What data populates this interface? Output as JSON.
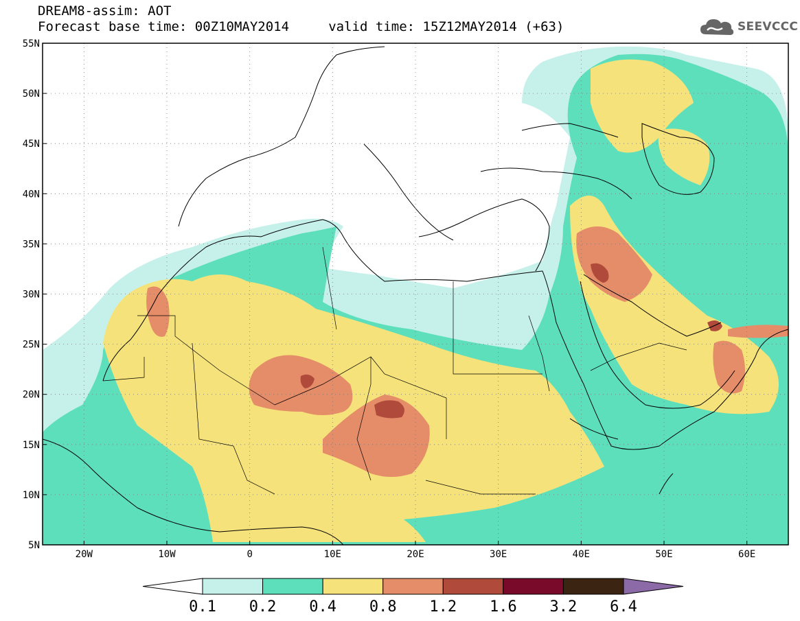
{
  "header": {
    "title_line1": "DREAM8-assim: AOT",
    "title_line2": "Forecast base time: 00Z10MAY2014     valid time: 15Z12MAY2014 (+63)",
    "logo_text": "SEEVCCC",
    "logo_icon": "cloud-logo-icon"
  },
  "map": {
    "lon_range": [
      -25,
      65
    ],
    "lat_range": [
      5,
      55
    ],
    "lon_ticks": [
      {
        "value": -20,
        "label": "20W"
      },
      {
        "value": -10,
        "label": "10W"
      },
      {
        "value": 0,
        "label": "0"
      },
      {
        "value": 10,
        "label": "10E"
      },
      {
        "value": 20,
        "label": "20E"
      },
      {
        "value": 30,
        "label": "30E"
      },
      {
        "value": 40,
        "label": "40E"
      },
      {
        "value": 50,
        "label": "50E"
      },
      {
        "value": 60,
        "label": "60E"
      }
    ],
    "lat_ticks": [
      {
        "value": 5,
        "label": "5N"
      },
      {
        "value": 10,
        "label": "10N"
      },
      {
        "value": 15,
        "label": "15N"
      },
      {
        "value": 20,
        "label": "20N"
      },
      {
        "value": 25,
        "label": "25N"
      },
      {
        "value": 30,
        "label": "30N"
      },
      {
        "value": 35,
        "label": "35N"
      },
      {
        "value": 40,
        "label": "40N"
      },
      {
        "value": 45,
        "label": "45N"
      },
      {
        "value": 50,
        "label": "50N"
      },
      {
        "value": 55,
        "label": "55N"
      }
    ],
    "grid": "dotted"
  },
  "colorbar": {
    "colors": [
      "#ffffff",
      "#c6f0ea",
      "#5ddfbc",
      "#f5e27a",
      "#e58c68",
      "#b04a3a",
      "#7a0a2a",
      "#3b2412",
      "#8c6aa8"
    ],
    "labels": [
      "0.1",
      "0.2",
      "0.4",
      "0.8",
      "1.2",
      "1.6",
      "3.2",
      "6.4"
    ]
  }
}
